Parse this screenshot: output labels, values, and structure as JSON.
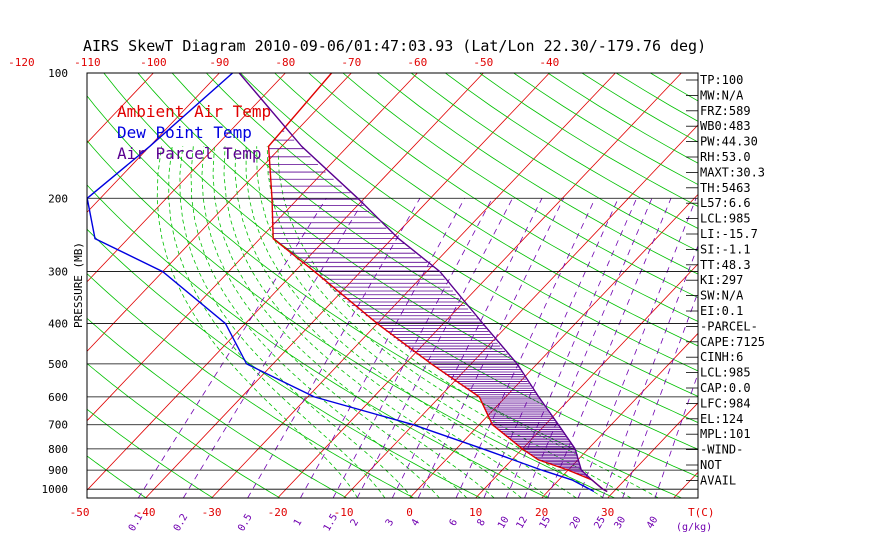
{
  "chart_data": {
    "type": "skewt",
    "title": "AIRS SkewT Diagram 2010-09-06/01:47:03.93 (Lat/Lon 22.30/-179.76 deg)",
    "ylabel": "PRESSURE (MB)",
    "xlabel": "T(C)",
    "mixing_unit": "(g/kg)",
    "pressure_levels": [
      100,
      200,
      300,
      400,
      500,
      600,
      700,
      800,
      900,
      1000
    ],
    "pressure_range": [
      100,
      1050
    ],
    "top_temperature_ticks": [
      -120,
      -110,
      -100,
      -90,
      -80,
      -70,
      -60,
      -50,
      -40
    ],
    "bottom_temperature_ticks": [
      -50,
      -40,
      -30,
      -20,
      -10,
      0,
      10,
      20,
      30
    ],
    "mixing_ratio_ticks": [
      "0.1",
      "0.2",
      "0.5",
      "1",
      "1.5",
      "2",
      "3",
      "4",
      "6",
      "8",
      "10",
      "12",
      "15",
      "20",
      "25",
      "30",
      "40"
    ],
    "legend": [
      {
        "label": "Ambient Air Temp",
        "color": "#e00000"
      },
      {
        "label": "Dew Point Temp",
        "color": "#0000e0"
      },
      {
        "label": "Air Parcel Temp",
        "color": "#5a0090"
      }
    ],
    "series": [
      {
        "name": "Ambient Air Temp",
        "color": "#e00000",
        "points": [
          [
            100,
            -73
          ],
          [
            150,
            -72
          ],
          [
            200,
            -64
          ],
          [
            250,
            -58
          ],
          [
            300,
            -47
          ],
          [
            400,
            -30
          ],
          [
            500,
            -16
          ],
          [
            600,
            -4
          ],
          [
            700,
            2
          ],
          [
            800,
            10
          ],
          [
            850,
            14
          ],
          [
            900,
            20
          ],
          [
            950,
            25
          ],
          [
            1000,
            28
          ],
          [
            1013,
            29
          ]
        ]
      },
      {
        "name": "Dew Point Temp",
        "color": "#0000e0",
        "points": [
          [
            100,
            -88
          ],
          [
            150,
            -90
          ],
          [
            200,
            -92
          ],
          [
            250,
            -85
          ],
          [
            300,
            -70
          ],
          [
            400,
            -53
          ],
          [
            500,
            -44
          ],
          [
            600,
            -29
          ],
          [
            700,
            -10
          ],
          [
            800,
            4
          ],
          [
            900,
            16
          ],
          [
            950,
            22
          ],
          [
            1013,
            27
          ]
        ]
      },
      {
        "name": "Air Parcel Temp",
        "color": "#5a0090",
        "points": [
          [
            100,
            -87
          ],
          [
            150,
            -67
          ],
          [
            200,
            -51
          ],
          [
            250,
            -39
          ],
          [
            300,
            -28
          ],
          [
            400,
            -14
          ],
          [
            500,
            -3
          ],
          [
            600,
            5
          ],
          [
            700,
            12
          ],
          [
            800,
            18
          ],
          [
            900,
            22
          ],
          [
            950,
            25
          ],
          [
            1000,
            28
          ],
          [
            1013,
            29
          ]
        ]
      }
    ],
    "stats": [
      "TP:100",
      "MW:N/A",
      "FRZ:589",
      "WB0:483",
      "PW:44.30",
      "RH:53.0",
      "MAXT:30.3",
      "TH:5463",
      "L57:6.6",
      "LCL:985",
      "LI:-15.7",
      "SI:-1.1",
      "TT:48.3",
      "KI:297",
      "SW:N/A",
      "EI:0.1",
      "-PARCEL-",
      "CAPE:7125",
      "CINH:6",
      "LCL:985",
      "CAP:0.0",
      "LFC:984",
      "EL:124",
      "MPL:101",
      "-WIND-",
      "NOT",
      "AVAIL"
    ]
  }
}
